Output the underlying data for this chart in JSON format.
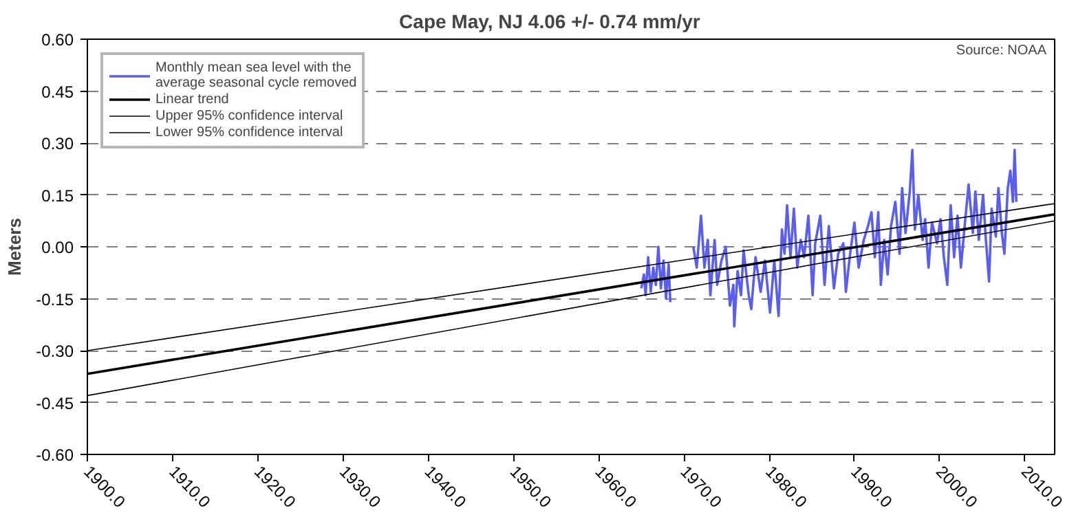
{
  "chart_data": {
    "type": "line",
    "title": "Cape May, NJ         4.06 +/- 0.74 mm/yr",
    "ylabel": "Meters",
    "annotations": [
      "Source: NOAA"
    ],
    "xlim": [
      1900,
      2013.5
    ],
    "ylim": [
      -0.6,
      0.6
    ],
    "xticks": [
      {
        "value": 1900,
        "label": "1900.0"
      },
      {
        "value": 1910,
        "label": "1910.0"
      },
      {
        "value": 1920,
        "label": "1920.0"
      },
      {
        "value": 1930,
        "label": "1930.0"
      },
      {
        "value": 1940,
        "label": "1940.0"
      },
      {
        "value": 1950,
        "label": "1950.0"
      },
      {
        "value": 1960,
        "label": "1960.0"
      },
      {
        "value": 1970,
        "label": "1970.0"
      },
      {
        "value": 1980,
        "label": "1980.0"
      },
      {
        "value": 1990,
        "label": "1990.0"
      },
      {
        "value": 2000,
        "label": "2000.0"
      },
      {
        "value": 2010,
        "label": "2010.0"
      }
    ],
    "yticks": [
      {
        "value": -0.6,
        "label": "-0.60"
      },
      {
        "value": -0.45,
        "label": "-0.45"
      },
      {
        "value": -0.3,
        "label": "-0.30"
      },
      {
        "value": -0.15,
        "label": "-0.15"
      },
      {
        "value": 0,
        "label": "0.00"
      },
      {
        "value": 0.15,
        "label": "0.15"
      },
      {
        "value": 0.3,
        "label": "0.30"
      },
      {
        "value": 0.45,
        "label": "0.45"
      },
      {
        "value": 0.6,
        "label": "0.60"
      }
    ],
    "grid": "y",
    "legend": "top left",
    "series": [
      {
        "name": "Monthly mean sea level with the\naverage seasonal cycle removed",
        "color": "#5a5ef0",
        "x": [
          1965.0,
          1965.3,
          1965.5,
          1965.8,
          1966.1,
          1966.4,
          1966.7,
          1967.0,
          1967.3,
          1967.6,
          1967.9,
          1968.2,
          1968.4,
          1969.8,
          1971.1,
          1971.5,
          1972.0,
          1972.4,
          1972.8,
          1973.1,
          1973.6,
          1973.9,
          1974.4,
          1974.9,
          1975.4,
          1975.8,
          1975.9,
          1976.3,
          1976.7,
          1977.0,
          1977.6,
          1977.9,
          1978.4,
          1979.0,
          1979.5,
          1980.1,
          1980.6,
          1981.1,
          1981.5,
          1981.8,
          1982.1,
          1982.5,
          1982.9,
          1983.3,
          1983.7,
          1984.1,
          1984.6,
          1985.1,
          1985.4,
          1986.0,
          1986.5,
          1987.0,
          1987.6,
          1988.1,
          1988.7,
          1989.0,
          1989.5,
          1990.0,
          1990.5,
          1991.1,
          1991.6,
          1992.0,
          1992.4,
          1992.8,
          1993.1,
          1993.5,
          1993.9,
          1994.3,
          1994.8,
          1995.3,
          1995.6,
          1996.0,
          1996.5,
          1996.8,
          1997.1,
          1997.5,
          1998.0,
          1998.3,
          1998.7,
          1999.1,
          1999.7,
          2000.1,
          2000.5,
          2000.9,
          2001.3,
          2001.7,
          2002.1,
          2002.5,
          2002.9,
          2003.4,
          2003.9,
          2004.2,
          2004.6,
          2005.1,
          2005.4,
          2005.8,
          2006.1,
          2006.6,
          2006.9,
          2007.3,
          2007.6,
          2008.0,
          2008.3,
          2008.6,
          2008.8,
          2009.0
        ],
        "values": [
          -0.12,
          -0.08,
          -0.14,
          -0.03,
          -0.13,
          -0.06,
          -0.11,
          0.0,
          -0.12,
          -0.04,
          -0.15,
          -0.05,
          -0.16,
          null,
          0.0,
          -0.06,
          0.09,
          -0.06,
          0.02,
          -0.14,
          0.02,
          -0.11,
          -0.04,
          0.0,
          -0.17,
          -0.11,
          -0.23,
          -0.07,
          -0.14,
          -0.01,
          -0.14,
          -0.18,
          -0.03,
          -0.13,
          -0.04,
          -0.19,
          -0.04,
          -0.2,
          0.05,
          -0.02,
          0.12,
          -0.03,
          0.11,
          -0.06,
          0.02,
          -0.03,
          0.09,
          -0.14,
          0.01,
          0.09,
          -0.11,
          0.06,
          -0.12,
          -0.02,
          0.01,
          -0.13,
          -0.02,
          0.07,
          -0.06,
          0.02,
          0.06,
          0.1,
          -0.03,
          0.1,
          -0.11,
          0.02,
          -0.08,
          0.06,
          0.13,
          -0.02,
          0.17,
          0.04,
          0.16,
          0.28,
          0.05,
          0.15,
          0.02,
          0.08,
          -0.06,
          0.07,
          0.01,
          0.08,
          -0.03,
          -0.11,
          0.12,
          -0.03,
          0.09,
          -0.06,
          0.05,
          0.18,
          0.04,
          0.16,
          0.02,
          0.15,
          0.03,
          -0.1,
          0.11,
          0.03,
          0.17,
          0.04,
          -0.02,
          0.17,
          0.22,
          0.13,
          0.28,
          0.13
        ]
      },
      {
        "name": "Linear trend",
        "color": "#000000",
        "x": [
          1900,
          2013.5
        ],
        "values": [
          -0.367,
          0.094
        ]
      },
      {
        "name": "Upper 95% confidence interval",
        "color": "#000000",
        "x": [
          1900,
          2013.5
        ],
        "values": [
          -0.3,
          0.125
        ]
      },
      {
        "name": "Lower 95% confidence interval",
        "color": "#000000",
        "x": [
          1900,
          2013.5
        ],
        "values": [
          -0.43,
          0.075
        ]
      }
    ]
  }
}
